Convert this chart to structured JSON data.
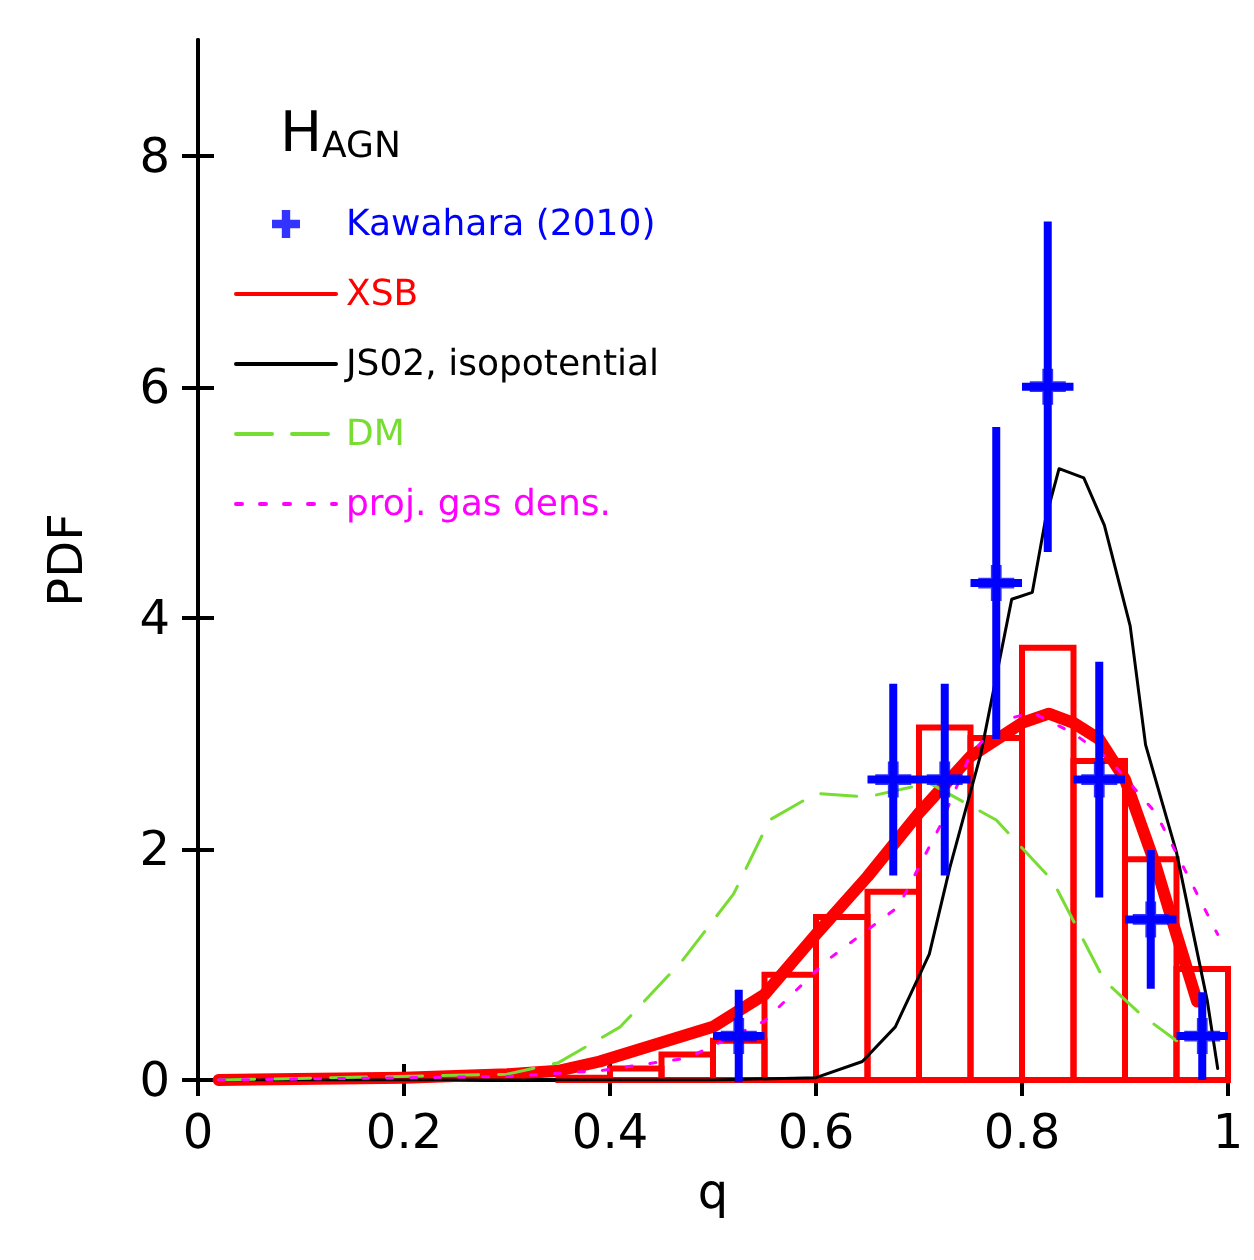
{
  "chart_data": {
    "type": "line",
    "xlabel": "q",
    "ylabel": "PDF",
    "legend_title": "H$_{AGN}$",
    "xlim": [
      0,
      1
    ],
    "ylim": [
      0,
      9
    ],
    "xticks": [
      0,
      0.2,
      0.4,
      0.6,
      0.8,
      1
    ],
    "yticks": [
      0,
      2,
      4,
      6,
      8
    ],
    "grid": false,
    "legend": "top left",
    "series": [
      {
        "type": "scatter",
        "name": "Kawahara (2010)",
        "color": "#0000ff",
        "marker": "cross",
        "x": [
          0.525,
          0.675,
          0.725,
          0.775,
          0.825,
          0.875,
          0.925,
          0.975
        ],
        "values": [
          0.38,
          2.6,
          2.6,
          4.3,
          6.0,
          2.6,
          1.39,
          0.38
        ],
        "errors": [
          0.4,
          0.83,
          0.83,
          1.35,
          1.43,
          1.02,
          0.6,
          0.38
        ],
        "xerrors": [
          0.025,
          0.025,
          0.025,
          0.025,
          0.025,
          0.025,
          0.025,
          0.025
        ]
      },
      {
        "type": "histogram",
        "color": "#ff0000",
        "bins": [
          0.35,
          0.4,
          0.45,
          0.5,
          0.55,
          0.6,
          0.65,
          0.7,
          0.75,
          0.8,
          0.85,
          0.9,
          0.95,
          1.0
        ],
        "values": [
          0.02,
          0.1,
          0.22,
          0.34,
          0.91,
          1.41,
          1.63,
          3.05,
          2.96,
          3.74,
          2.76,
          1.91,
          0.96
        ]
      },
      {
        "name": "XSB",
        "color": "#ff0000",
        "line_style": "solid",
        "x": [
          0.02,
          0.2,
          0.3,
          0.35,
          0.39,
          0.5,
          0.55,
          0.6,
          0.65,
          0.7,
          0.75,
          0.8,
          0.826,
          0.85,
          0.875,
          0.9,
          0.93,
          0.95,
          0.97
        ],
        "values": [
          0,
          0.02,
          0.05,
          0.08,
          0.16,
          0.46,
          0.74,
          1.26,
          1.76,
          2.31,
          2.8,
          3.09,
          3.17,
          3.09,
          2.95,
          2.6,
          1.85,
          1.26,
          0.68
        ]
      },
      {
        "name": "JS02, isopotential",
        "color": "#000000",
        "line_style": "solid",
        "x": [
          0.02,
          0.5,
          0.6,
          0.645,
          0.677,
          0.71,
          0.73,
          0.76,
          0.79,
          0.81,
          0.823,
          0.836,
          0.86,
          0.88,
          0.905,
          0.92,
          0.95,
          0.98,
          0.99
        ],
        "values": [
          0,
          0,
          0.02,
          0.16,
          0.46,
          1.09,
          1.84,
          2.82,
          4.16,
          4.22,
          4.86,
          5.29,
          5.21,
          4.8,
          3.93,
          2.9,
          1.97,
          0.68,
          0.1
        ]
      },
      {
        "name": "DM",
        "color": "#77dd33",
        "line_style": "dashed",
        "x": [
          0.02,
          0.3,
          0.35,
          0.41,
          0.47,
          0.52,
          0.555,
          0.6,
          0.65,
          0.71,
          0.775,
          0.83,
          0.88,
          0.915,
          0.95
        ],
        "values": [
          0,
          0.05,
          0.15,
          0.46,
          1.03,
          1.61,
          2.25,
          2.48,
          2.45,
          2.57,
          2.25,
          1.72,
          0.86,
          0.57,
          0.34
        ]
      },
      {
        "name": "proj. gas dens.",
        "color": "#ff00ff",
        "line_style": "dotted",
        "x": [
          0.02,
          0.3,
          0.39,
          0.475,
          0.55,
          0.61,
          0.68,
          0.72,
          0.75,
          0.78,
          0.81,
          0.85,
          0.885,
          0.93,
          0.97,
          0.99
        ],
        "values": [
          0,
          0.03,
          0.08,
          0.19,
          0.51,
          1.03,
          1.5,
          2.19,
          2.82,
          3.11,
          3.18,
          3.0,
          2.77,
          2.31,
          1.61,
          1.26
        ]
      }
    ]
  }
}
